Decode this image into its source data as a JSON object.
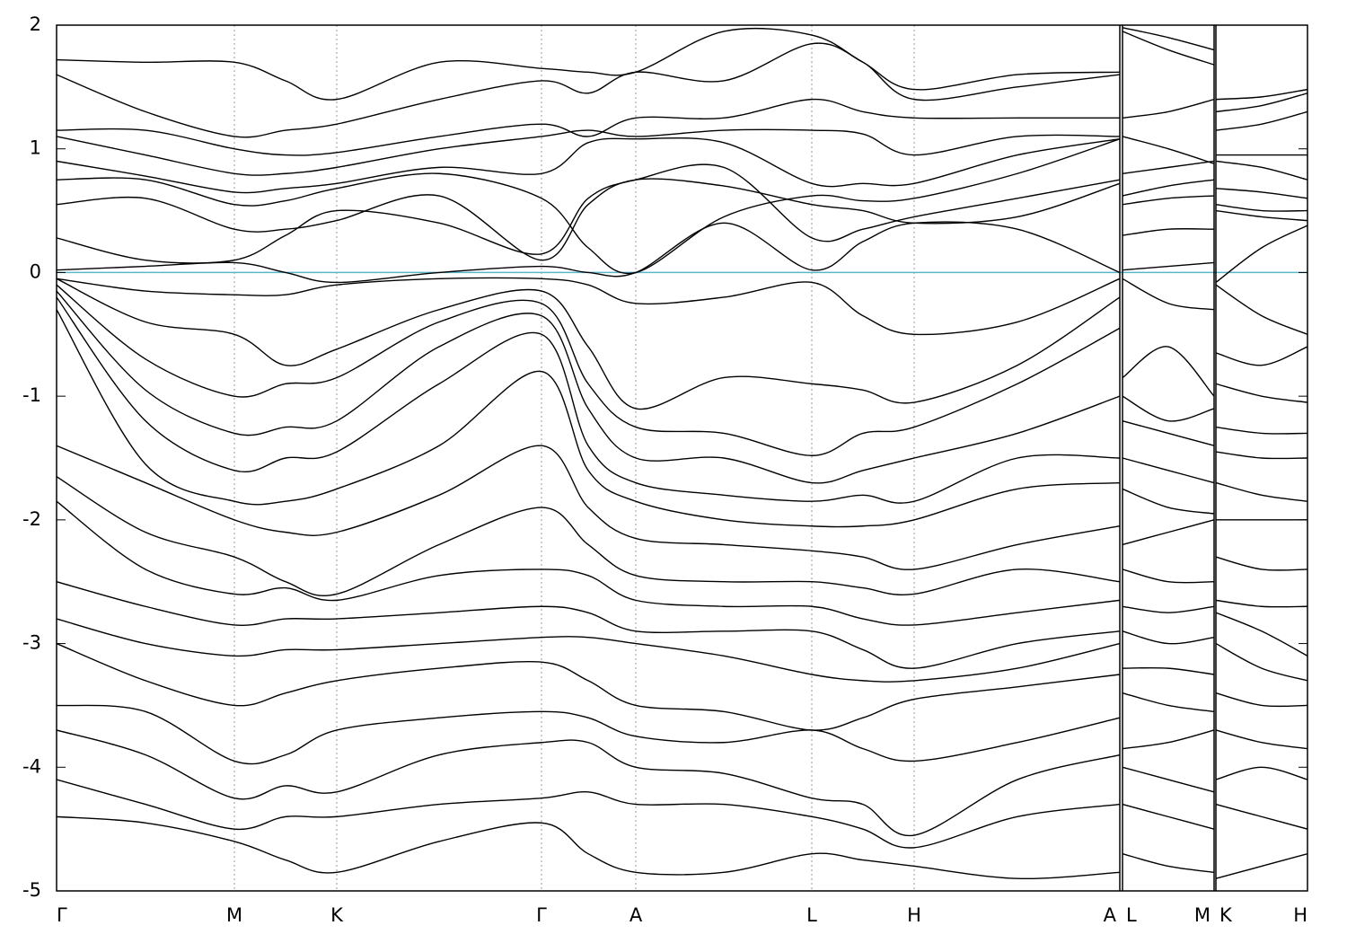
{
  "chart_data": {
    "type": "line",
    "x": [
      0,
      0.99,
      1.98,
      2.55,
      3.12,
      4.26,
      5.4,
      5.92,
      6.45,
      7.43,
      8.41,
      8.98,
      9.55,
      10.7,
      11.84,
      11.855,
      11.87,
      12.38,
      12.89,
      12.9,
      12.91,
      13.42,
      13.93
    ],
    "xlim": [
      0,
      13.93
    ],
    "xticks": [
      {
        "value": 0,
        "label": "Γ"
      },
      {
        "value": 1.98,
        "label": "M"
      },
      {
        "value": 3.12,
        "label": "K"
      },
      {
        "value": 5.4,
        "label": "Γ"
      },
      {
        "value": 6.45,
        "label": "A"
      },
      {
        "value": 8.41,
        "label": "L"
      },
      {
        "value": 9.55,
        "label": "H"
      },
      {
        "value": 11.84,
        "label": "A"
      },
      {
        "value": 11.87,
        "label": "L"
      },
      {
        "value": 12.89,
        "label": "M"
      },
      {
        "value": 12.91,
        "label": "K"
      },
      {
        "value": 13.93,
        "label": "H"
      }
    ],
    "ylim": [
      -5,
      2
    ],
    "yticks": [
      -5,
      -4,
      -3,
      -2,
      -1,
      0,
      1,
      2
    ],
    "grid": true,
    "line_color": "#000000",
    "reference_line": {
      "value": 0,
      "color": "#5ab4cc"
    },
    "series": [
      {
        "values": [
          0.02,
          0.05,
          0.08,
          0.0,
          -0.08,
          0.0,
          0.05,
          0.0,
          0.0,
          0.4,
          0.02,
          0.25,
          0.4,
          0.35,
          0.0,
          null,
          0.02,
          0.05,
          0.08,
          null,
          -0.08,
          0.2,
          0.38
        ]
      },
      {
        "values": [
          0.28,
          0.1,
          0.1,
          0.3,
          0.5,
          0.4,
          0.15,
          0.6,
          0.75,
          0.85,
          0.28,
          0.35,
          0.45,
          0.6,
          0.75,
          null,
          0.3,
          0.35,
          0.35,
          null,
          0.5,
          0.45,
          0.42
        ]
      },
      {
        "values": [
          0.55,
          0.6,
          0.35,
          0.35,
          0.42,
          0.62,
          0.1,
          0.55,
          0.75,
          0.7,
          0.55,
          0.5,
          0.4,
          0.45,
          0.72,
          null,
          0.55,
          0.6,
          0.62,
          null,
          0.55,
          0.5,
          0.5
        ]
      },
      {
        "values": [
          0.75,
          0.75,
          0.55,
          0.58,
          0.68,
          0.8,
          0.6,
          0.2,
          0.0,
          0.45,
          0.62,
          0.58,
          0.6,
          0.8,
          1.08,
          null,
          0.62,
          0.7,
          0.75,
          null,
          0.68,
          0.65,
          0.6
        ]
      },
      {
        "values": [
          0.9,
          0.78,
          0.65,
          0.68,
          0.72,
          0.85,
          0.8,
          1.05,
          1.08,
          1.05,
          0.72,
          0.72,
          0.72,
          0.95,
          1.08,
          null,
          0.8,
          0.85,
          0.9,
          null,
          0.9,
          0.85,
          0.75
        ]
      },
      {
        "values": [
          1.1,
          0.95,
          0.8,
          0.8,
          0.85,
          1.0,
          1.1,
          1.15,
          1.1,
          1.15,
          1.15,
          1.12,
          0.95,
          1.1,
          1.1,
          null,
          1.1,
          1.0,
          0.88,
          null,
          0.95,
          0.95,
          0.95
        ]
      },
      {
        "values": [
          1.15,
          1.15,
          1.0,
          0.95,
          0.97,
          1.1,
          1.2,
          1.1,
          1.25,
          1.25,
          1.4,
          1.3,
          1.25,
          1.25,
          1.25,
          null,
          1.25,
          1.3,
          1.4,
          null,
          1.15,
          1.2,
          1.3
        ]
      },
      {
        "values": [
          1.6,
          1.3,
          1.1,
          1.15,
          1.2,
          1.4,
          1.55,
          1.45,
          1.62,
          1.55,
          1.85,
          1.7,
          1.4,
          1.5,
          1.6,
          null,
          1.95,
          1.8,
          1.68,
          null,
          1.3,
          1.35,
          1.45
        ]
      },
      {
        "values": [
          1.72,
          1.7,
          1.7,
          1.55,
          1.4,
          1.7,
          1.65,
          1.62,
          1.62,
          1.95,
          1.92,
          1.7,
          1.48,
          1.6,
          1.62,
          null,
          1.98,
          1.9,
          1.8,
          null,
          1.4,
          1.42,
          1.48
        ]
      },
      {
        "values": [
          -0.05,
          -0.15,
          -0.18,
          -0.18,
          -0.1,
          -0.05,
          -0.05,
          -0.1,
          -0.25,
          -0.2,
          -0.08,
          -0.35,
          -0.5,
          -0.4,
          -0.05,
          null,
          -0.05,
          -0.25,
          -0.3,
          null,
          -0.1,
          -0.35,
          -0.5
        ]
      },
      {
        "values": [
          -0.05,
          -0.4,
          -0.5,
          -0.75,
          -0.62,
          -0.3,
          -0.15,
          -0.6,
          -1.1,
          -0.85,
          -0.9,
          -0.95,
          -1.05,
          -0.75,
          -0.2,
          null,
          -0.85,
          -0.6,
          -1.0,
          null,
          -0.65,
          -0.75,
          -0.6
        ]
      },
      {
        "values": [
          -0.1,
          -0.7,
          -1.0,
          -0.9,
          -0.85,
          -0.4,
          -0.25,
          -0.9,
          -1.25,
          -1.3,
          -1.48,
          -1.3,
          -1.25,
          -0.9,
          -0.45,
          null,
          -1.0,
          -1.2,
          -1.1,
          null,
          -0.9,
          -1.0,
          -1.05
        ]
      },
      {
        "values": [
          -0.15,
          -0.95,
          -1.3,
          -1.25,
          -1.2,
          -0.6,
          -0.35,
          -1.1,
          -1.5,
          -1.5,
          -1.7,
          -1.6,
          -1.5,
          -1.3,
          -1.0,
          null,
          -1.2,
          -1.3,
          -1.4,
          null,
          -1.25,
          -1.3,
          -1.3
        ]
      },
      {
        "values": [
          -0.2,
          -1.2,
          -1.6,
          -1.5,
          -1.45,
          -0.9,
          -0.5,
          -1.4,
          -1.7,
          -1.8,
          -1.85,
          -1.8,
          -1.85,
          -1.5,
          -1.5,
          null,
          -1.5,
          -1.6,
          -1.7,
          null,
          -1.45,
          -1.5,
          -1.5
        ]
      },
      {
        "values": [
          -0.3,
          -1.55,
          -1.85,
          -1.85,
          -1.75,
          -1.4,
          -0.8,
          -1.6,
          -1.85,
          -2.0,
          -2.05,
          -2.05,
          -2.0,
          -1.75,
          -1.7,
          null,
          -1.75,
          -1.9,
          -1.95,
          null,
          -1.7,
          -1.8,
          -1.85
        ]
      },
      {
        "values": [
          -1.4,
          -1.7,
          -2.0,
          -2.1,
          -2.1,
          -1.8,
          -1.4,
          -1.9,
          -2.15,
          -2.2,
          -2.25,
          -2.3,
          -2.4,
          -2.2,
          -2.05,
          null,
          -2.2,
          -2.1,
          -2.0,
          null,
          -2.0,
          -2.0,
          -2.0
        ]
      },
      {
        "values": [
          -1.65,
          -2.1,
          -2.3,
          -2.5,
          -2.6,
          -2.2,
          -1.9,
          -2.2,
          -2.45,
          -2.5,
          -2.5,
          -2.55,
          -2.6,
          -2.4,
          -2.5,
          null,
          -2.4,
          -2.5,
          -2.5,
          null,
          -2.3,
          -2.4,
          -2.4
        ]
      },
      {
        "values": [
          -1.85,
          -2.4,
          -2.6,
          -2.55,
          -2.65,
          -2.45,
          -2.4,
          -2.45,
          -2.65,
          -2.7,
          -2.7,
          -2.8,
          -2.85,
          -2.75,
          -2.65,
          null,
          -2.7,
          -2.75,
          -2.7,
          null,
          -2.65,
          -2.7,
          -2.7
        ]
      },
      {
        "values": [
          -2.5,
          -2.7,
          -2.85,
          -2.8,
          -2.8,
          -2.75,
          -2.7,
          -2.75,
          -2.9,
          -2.9,
          -2.9,
          -3.05,
          -3.2,
          -3.0,
          -2.9,
          null,
          -2.9,
          -3.0,
          -2.95,
          null,
          -2.75,
          -2.9,
          -3.1
        ]
      },
      {
        "values": [
          -2.8,
          -3.0,
          -3.1,
          -3.05,
          -3.05,
          -3.0,
          -2.95,
          -2.95,
          -3.0,
          -3.1,
          -3.25,
          -3.3,
          -3.3,
          -3.2,
          -3.0,
          null,
          -3.2,
          -3.2,
          -3.25,
          null,
          -3.0,
          -3.2,
          -3.3
        ]
      },
      {
        "values": [
          -3.0,
          -3.3,
          -3.5,
          -3.4,
          -3.3,
          -3.2,
          -3.15,
          -3.3,
          -3.5,
          -3.55,
          -3.7,
          -3.6,
          -3.45,
          -3.35,
          -3.25,
          null,
          -3.4,
          -3.5,
          -3.55,
          null,
          -3.4,
          -3.5,
          -3.5
        ]
      },
      {
        "values": [
          -3.5,
          -3.55,
          -3.95,
          -3.9,
          -3.7,
          -3.6,
          -3.55,
          -3.6,
          -3.75,
          -3.8,
          -3.7,
          -3.85,
          -3.95,
          -3.8,
          -3.6,
          null,
          -3.85,
          -3.8,
          -3.7,
          null,
          -3.7,
          -3.8,
          -3.85
        ]
      },
      {
        "values": [
          -3.7,
          -3.9,
          -4.25,
          -4.15,
          -4.2,
          -3.9,
          -3.8,
          -3.8,
          -4.0,
          -4.05,
          -4.25,
          -4.3,
          -4.55,
          -4.1,
          -3.9,
          null,
          -4.0,
          -4.1,
          -4.2,
          null,
          -4.1,
          -4.0,
          -4.1
        ]
      },
      {
        "values": [
          -4.1,
          -4.3,
          -4.5,
          -4.4,
          -4.4,
          -4.3,
          -4.25,
          -4.2,
          -4.3,
          -4.3,
          -4.4,
          -4.5,
          -4.65,
          -4.4,
          -4.3,
          null,
          -4.3,
          -4.4,
          -4.5,
          null,
          -4.3,
          -4.4,
          -4.5
        ]
      },
      {
        "values": [
          -4.4,
          -4.45,
          -4.6,
          -4.75,
          -4.85,
          -4.6,
          -4.45,
          -4.7,
          -4.85,
          -4.85,
          -4.7,
          -4.75,
          -4.8,
          -4.9,
          -4.85,
          null,
          -4.7,
          -4.8,
          -4.85,
          null,
          -4.9,
          -4.8,
          -4.7
        ]
      }
    ]
  }
}
